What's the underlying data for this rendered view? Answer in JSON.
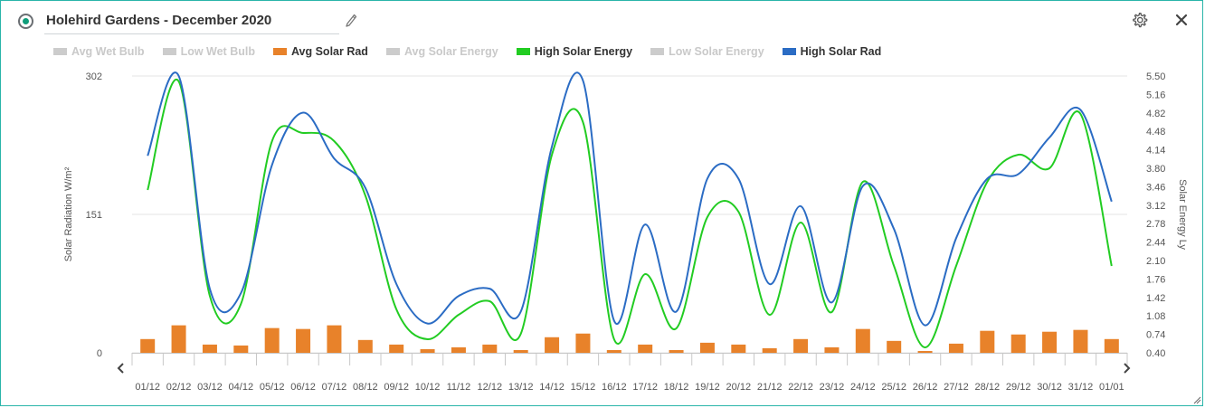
{
  "header": {
    "title": "Holehird Gardens - December 2020",
    "icons": {
      "radio": "radio-selected-icon",
      "edit": "pencil-icon",
      "settings": "gear-icon",
      "close": "close-icon"
    }
  },
  "legend": [
    {
      "label": "Avg Wet Bulb",
      "color": "#cccccc",
      "active": false
    },
    {
      "label": "Low Wet Bulb",
      "color": "#cccccc",
      "active": false
    },
    {
      "label": "Avg Solar Rad",
      "color": "#e8822a",
      "active": true
    },
    {
      "label": "Avg Solar Energy",
      "color": "#cccccc",
      "active": false
    },
    {
      "label": "High Solar Energy",
      "color": "#22cc22",
      "active": true
    },
    {
      "label": "Low Solar Energy",
      "color": "#cccccc",
      "active": false
    },
    {
      "label": "High Solar Rad",
      "color": "#2b6cc4",
      "active": true
    }
  ],
  "chart_data": {
    "type": "bar+line",
    "categories": [
      "01/12",
      "02/12",
      "03/12",
      "04/12",
      "05/12",
      "06/12",
      "07/12",
      "08/12",
      "09/12",
      "10/12",
      "11/12",
      "12/12",
      "13/12",
      "14/12",
      "15/12",
      "16/12",
      "17/12",
      "18/12",
      "19/12",
      "20/12",
      "21/12",
      "22/12",
      "23/12",
      "24/12",
      "25/12",
      "26/12",
      "27/12",
      "28/12",
      "29/12",
      "30/12",
      "31/12",
      "01/01"
    ],
    "y_left": {
      "label": "Solar Radiation W/m²",
      "ticks": [
        "0",
        "151",
        "302"
      ],
      "lim": [
        0,
        302
      ]
    },
    "y_right": {
      "label": "Solar Energy Ly",
      "ticks": [
        "0.40",
        "0.74",
        "1.08",
        "1.42",
        "1.76",
        "2.10",
        "2.44",
        "2.78",
        "3.12",
        "3.46",
        "3.80",
        "4.14",
        "4.48",
        "4.82",
        "5.16",
        "5.50"
      ],
      "lim": [
        0.4,
        5.5
      ]
    },
    "series": [
      {
        "name": "Avg Solar Rad",
        "type": "bar",
        "axis": "left",
        "color": "#e8822a",
        "values": [
          15,
          30,
          9,
          8,
          27,
          26,
          30,
          14,
          9,
          4,
          6,
          9,
          3,
          17,
          21,
          3,
          9,
          3,
          11,
          9,
          5,
          15,
          6,
          26,
          13,
          2,
          10,
          24,
          20,
          23,
          25,
          15
        ]
      },
      {
        "name": "High Solar Energy",
        "type": "line",
        "axis": "right",
        "color": "#22cc22",
        "values": [
          3.4,
          5.4,
          1.45,
          1.3,
          4.3,
          4.45,
          4.3,
          3.3,
          1.2,
          0.65,
          1.1,
          1.35,
          0.75,
          4.05,
          4.65,
          0.65,
          1.85,
          0.85,
          2.9,
          3.0,
          1.1,
          2.8,
          1.15,
          3.55,
          2.0,
          0.5,
          2.0,
          3.55,
          4.05,
          3.8,
          4.8,
          2.0
        ]
      },
      {
        "name": "High Solar Rad",
        "type": "line",
        "axis": "left",
        "color": "#2b6cc4",
        "values": [
          215,
          302,
          70,
          65,
          205,
          262,
          212,
          180,
          75,
          32,
          62,
          70,
          45,
          225,
          297,
          35,
          140,
          45,
          190,
          190,
          75,
          160,
          55,
          182,
          135,
          30,
          125,
          190,
          195,
          235,
          265,
          165
        ]
      }
    ],
    "grid": true,
    "legend_position": "top"
  }
}
